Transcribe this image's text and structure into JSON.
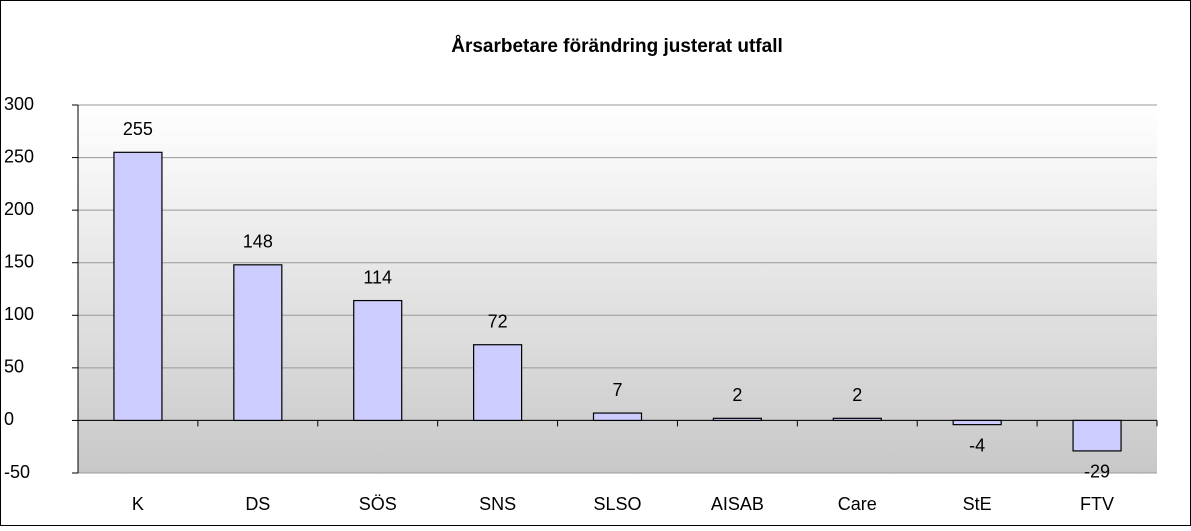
{
  "chart_data": {
    "type": "bar",
    "title": "Årsarbetare förändring justerat utfall",
    "categories": [
      "K",
      "DS",
      "SÖS",
      "SNS",
      "SLSO",
      "AISAB",
      "Care",
      "StE",
      "FTV"
    ],
    "values": [
      255,
      148,
      114,
      72,
      7,
      2,
      2,
      -4,
      -29
    ],
    "color": "#ccccff",
    "ylim": [
      -50,
      300
    ],
    "yticks": [
      -50,
      0,
      50,
      100,
      150,
      200,
      250,
      300
    ],
    "grid": true
  }
}
